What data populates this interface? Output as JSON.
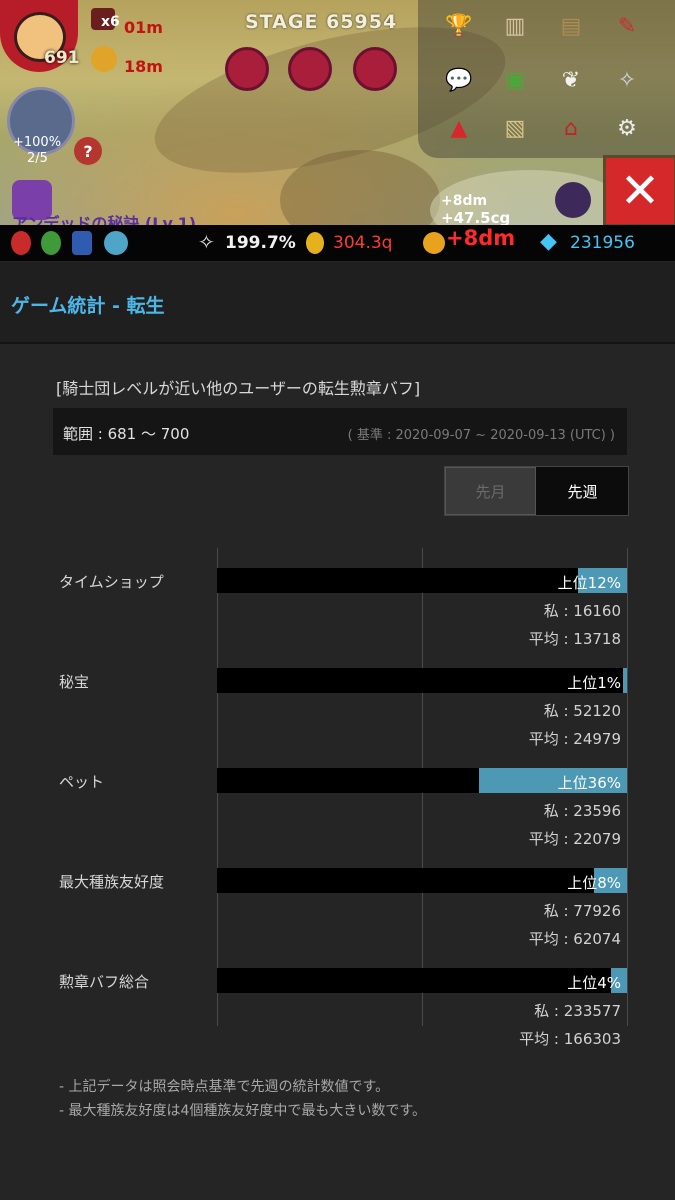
{
  "game": {
    "level": "691",
    "multiplier": "x6",
    "timer_a": "01m",
    "timer_b": "18m",
    "stage": "STAGE 65954",
    "pet_boost": "+100%",
    "pet_count": "2/5",
    "help_mark": "?",
    "buff_partial": "アンデッドの秘訣 (Lv.1)",
    "float_a": "+8dm",
    "float_b": "+47.5cg",
    "close_symbol": "✕"
  },
  "hud": {
    "wings": "199.7%",
    "medals": "304.3q",
    "gold_float": "+8dm",
    "gems": "231956",
    "colors": {
      "medals": "#ff3b30",
      "gems": "#44c6f5",
      "gold_float": "#ff2a2a"
    }
  },
  "header": {
    "title": "ゲーム統計 - 転生"
  },
  "panel": {
    "title": "[騎士団レベルが近い他のユーザーの転生勲章バフ]",
    "range": "範囲 : 681 ～ 700",
    "basis": "( 基準  : 2020-09-07 ~ 2020-09-13 (UTC) )",
    "tabs": [
      "先月",
      "先週"
    ],
    "selected_tab": "先週"
  },
  "chart_data": {
    "type": "bar",
    "orientation": "horizontal",
    "categories": [
      "タイムショップ",
      "秘宝",
      "ペット",
      "最大種族友好度",
      "勲章バフ総合"
    ],
    "percentile_labels": [
      "上位12%",
      "上位1%",
      "上位36%",
      "上位8%",
      "上位4%"
    ],
    "percentiles": [
      12,
      1,
      36,
      8,
      4
    ],
    "my_labels": [
      "私 : 16160",
      "私 : 52120",
      "私 : 23596",
      "私 : 77926",
      "私 : 233577"
    ],
    "avg_labels": [
      "平均 : 13718",
      "平均 : 24979",
      "平均 : 22079",
      "平均 : 62074",
      "平均 : 166303"
    ],
    "mine": [
      16160,
      52120,
      23596,
      77926,
      233577
    ],
    "average": [
      13718,
      24979,
      22079,
      62074,
      166303
    ],
    "xlim": [
      0,
      100
    ],
    "bar_color": "#4d98b4"
  },
  "notes": [
    "- 上記データは照会時点基準で先週の統計数値です。",
    "- 最大種族友好度は4個種族友好度中で最も大きい数です。"
  ]
}
